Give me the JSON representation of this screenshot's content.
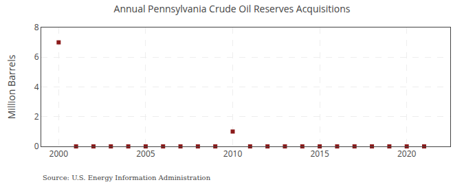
{
  "chart_data": {
    "type": "scatter",
    "title": "Annual Pennsylvania Crude Oil Reserves Acquisitions",
    "ylabel": "Million Barrels",
    "annotation": "Source: U.S. Energy Information Administration",
    "x": [
      2000,
      2001,
      2002,
      2003,
      2004,
      2005,
      2006,
      2007,
      2008,
      2009,
      2010,
      2011,
      2012,
      2013,
      2014,
      2015,
      2016,
      2017,
      2018,
      2019,
      2020,
      2021
    ],
    "values": [
      7.0,
      0.0,
      0.0,
      0.0,
      0.0,
      0.0,
      0.0,
      0.0,
      0.0,
      0.0,
      1.0,
      0.0,
      0.0,
      0.0,
      0.0,
      0.0,
      0.0,
      0.0,
      0.0,
      0.0,
      0.0,
      0.0
    ],
    "color": "#8b1a1a",
    "marker": "square",
    "xlim": [
      1999,
      2022.5
    ],
    "ylim": [
      0,
      8
    ],
    "xticks": [
      2000,
      2005,
      2010,
      2015,
      2020
    ],
    "yticks": [
      0,
      2,
      4,
      6,
      8
    ],
    "grid": true
  }
}
